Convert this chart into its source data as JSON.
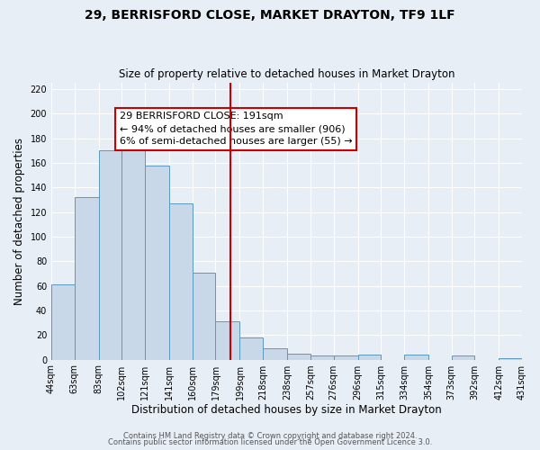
{
  "title": "29, BERRISFORD CLOSE, MARKET DRAYTON, TF9 1LF",
  "subtitle": "Size of property relative to detached houses in Market Drayton",
  "xlabel": "Distribution of detached houses by size in Market Drayton",
  "ylabel": "Number of detached properties",
  "bin_edges": [
    44,
    63,
    83,
    102,
    121,
    141,
    160,
    179,
    199,
    218,
    238,
    257,
    276,
    296,
    315,
    334,
    354,
    373,
    392,
    412,
    431
  ],
  "bin_labels": [
    "44sqm",
    "63sqm",
    "83sqm",
    "102sqm",
    "121sqm",
    "141sqm",
    "160sqm",
    "179sqm",
    "199sqm",
    "218sqm",
    "238sqm",
    "257sqm",
    "276sqm",
    "296sqm",
    "315sqm",
    "334sqm",
    "354sqm",
    "373sqm",
    "392sqm",
    "412sqm",
    "431sqm"
  ],
  "counts": [
    61,
    132,
    170,
    170,
    158,
    127,
    71,
    31,
    18,
    9,
    5,
    3,
    3,
    4,
    0,
    4,
    0,
    3,
    0,
    1
  ],
  "bar_color": "#c8d8e8",
  "bar_edge_color": "#5a9abd",
  "vline_x": 191,
  "vline_color": "#cc0000",
  "annotation_title": "29 BERRISFORD CLOSE: 191sqm",
  "annotation_line1": "← 94% of detached houses are smaller (906)",
  "annotation_line2": "6% of semi-detached houses are larger (55) →",
  "annotation_box_color": "#cc0000",
  "ylim": [
    0,
    225
  ],
  "yticks": [
    0,
    20,
    40,
    60,
    80,
    100,
    120,
    140,
    160,
    180,
    200,
    220
  ],
  "footer1": "Contains HM Land Registry data © Crown copyright and database right 2024.",
  "footer2": "Contains public sector information licensed under the Open Government Licence 3.0.",
  "bg_color": "#e8eef5",
  "plot_bg_color": "#e8eef5",
  "title_fontsize": 10,
  "subtitle_fontsize": 8.5,
  "axis_label_fontsize": 8.5,
  "tick_fontsize": 7,
  "footer_fontsize": 6,
  "annot_fontsize": 8
}
